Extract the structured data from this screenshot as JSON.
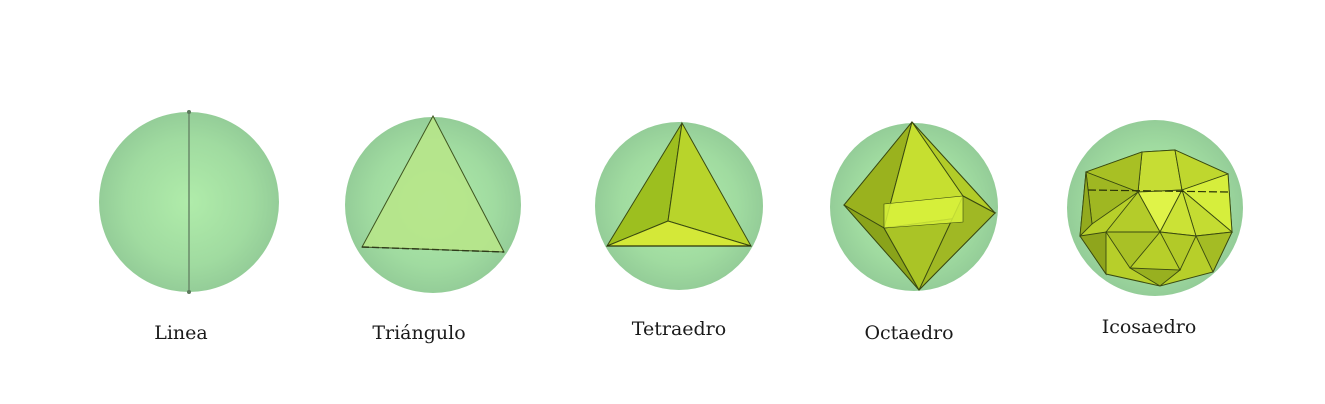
{
  "figures": [
    {
      "label": "Linea"
    },
    {
      "label": "Triángulo"
    },
    {
      "label": "Tetraedro"
    },
    {
      "label": "Octaedro"
    },
    {
      "label": "Icosaedro"
    }
  ],
  "colors": {
    "sphere": "#a6e3a6",
    "polyhedron": "#c9e02a",
    "edges": "#3a4a10"
  }
}
